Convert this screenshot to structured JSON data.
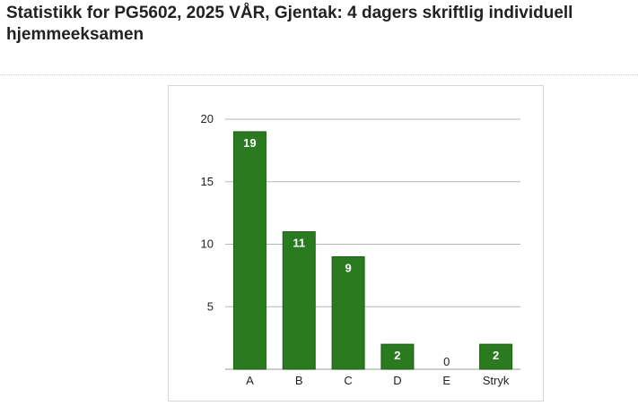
{
  "page": {
    "title": "Statistikk for PG5602, 2025 VÅR, Gjentak: 4 dagers skriftlig individuell hjemmeeksamen"
  },
  "chart_data": {
    "type": "bar",
    "categories": [
      "A",
      "B",
      "C",
      "D",
      "E",
      "Stryk"
    ],
    "values": [
      19,
      11,
      9,
      2,
      0,
      2
    ],
    "data_labels": [
      "19",
      "11",
      "9",
      "2",
      "0",
      "2"
    ],
    "y_ticks": [
      "5",
      "10",
      "15",
      "20"
    ],
    "ylim": [
      0,
      20
    ],
    "grid": true,
    "legend": "none",
    "colors": {
      "bar": "#2a7a1f",
      "bar_stroke": "#1e5c15",
      "grid": "#b5b5b5",
      "axis": "#999999",
      "label_inside": "#ffffff",
      "label_outside": "#222222"
    }
  }
}
